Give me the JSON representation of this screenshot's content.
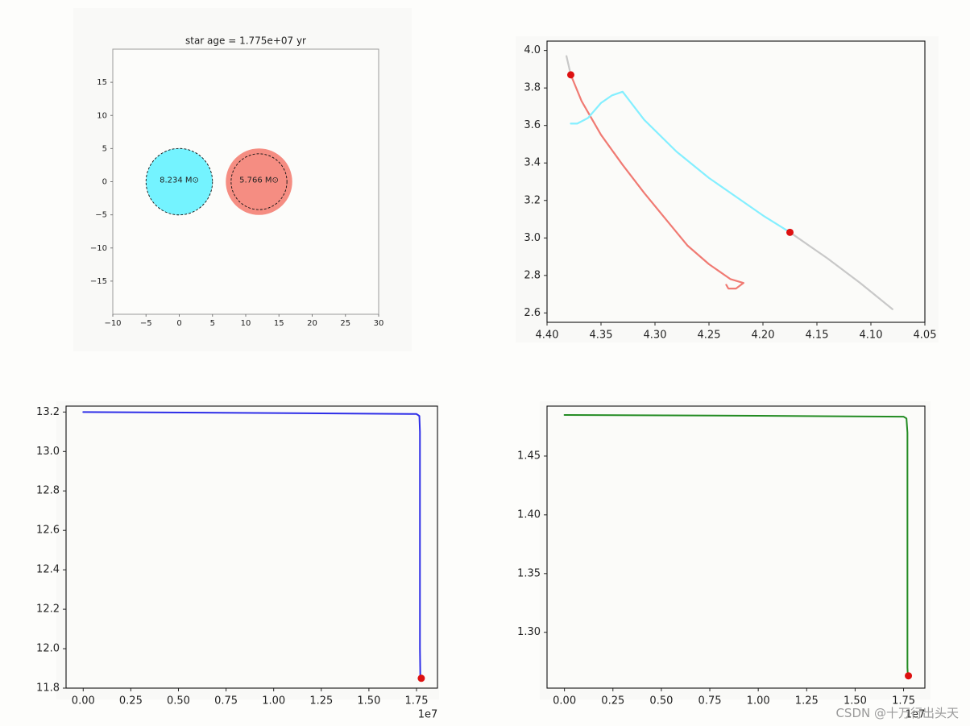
{
  "watermark": "CSDN @十万行出头天",
  "chart_data": [
    {
      "type": "scatter",
      "subtype": "binary-star-diagram",
      "title": "star age = 1.775e+07 yr",
      "xlabel": "",
      "ylabel": "",
      "xlim": [
        -10,
        30
      ],
      "ylim": [
        -20,
        20
      ],
      "x_ticks": [
        -10,
        -5,
        0,
        5,
        10,
        15,
        20,
        25,
        30
      ],
      "y_ticks": [
        -15,
        -10,
        -5,
        0,
        5,
        10,
        15
      ],
      "stars": [
        {
          "label": "8.234 $M_{\\odot}$",
          "x": 0,
          "y": 0,
          "radius": 5,
          "roche_radius": 5,
          "color": "#74f3ff"
        },
        {
          "label": "5.766 $M_{\\odot}$",
          "x": 12,
          "y": 0,
          "radius": 5,
          "roche_radius": 4.2,
          "color": "#f58d82"
        }
      ]
    },
    {
      "type": "line",
      "title": "",
      "xlabel": "",
      "ylabel": "",
      "x_inverted": true,
      "xlim": [
        4.4,
        4.05
      ],
      "ylim": [
        2.55,
        4.05
      ],
      "x_ticks": [
        4.4,
        4.35,
        4.3,
        4.25,
        4.2,
        4.15,
        4.1,
        4.05
      ],
      "y_ticks": [
        2.6,
        2.8,
        3.0,
        3.2,
        3.4,
        3.6,
        3.8,
        4.0
      ],
      "series": [
        {
          "color": "#c8c8c8",
          "points": [
            [
              4.382,
              3.97
            ],
            [
              4.378,
              3.87
            ]
          ]
        },
        {
          "color": "#c8c8c8",
          "points": [
            [
              4.175,
              3.03
            ],
            [
              4.14,
              2.89
            ],
            [
              4.11,
              2.76
            ],
            [
              4.08,
              2.62
            ]
          ]
        },
        {
          "color": "#f07a73",
          "points": [
            [
              4.378,
              3.87
            ],
            [
              4.368,
              3.73
            ],
            [
              4.35,
              3.55
            ],
            [
              4.33,
              3.39
            ],
            [
              4.31,
              3.24
            ],
            [
              4.29,
              3.1
            ],
            [
              4.27,
              2.96
            ],
            [
              4.25,
              2.86
            ],
            [
              4.23,
              2.78
            ],
            [
              4.218,
              2.76
            ],
            [
              4.225,
              2.73
            ],
            [
              4.232,
              2.73
            ],
            [
              4.234,
              2.75
            ]
          ]
        },
        {
          "color": "#84efff",
          "points": [
            [
              4.378,
              3.61
            ],
            [
              4.372,
              3.61
            ],
            [
              4.362,
              3.64
            ],
            [
              4.35,
              3.72
            ],
            [
              4.34,
              3.76
            ],
            [
              4.33,
              3.78
            ],
            [
              4.31,
              3.63
            ],
            [
              4.28,
              3.46
            ],
            [
              4.25,
              3.32
            ],
            [
              4.22,
              3.2
            ],
            [
              4.2,
              3.12
            ],
            [
              4.175,
              3.03
            ]
          ]
        }
      ],
      "markers": [
        {
          "x": 4.378,
          "y": 3.87,
          "color": "#dd1111"
        },
        {
          "x": 4.175,
          "y": 3.03,
          "color": "#dd1111"
        }
      ]
    },
    {
      "type": "line",
      "title": "",
      "xlabel": "",
      "ylabel": "",
      "offset_label": "1e7",
      "xlim": [
        -0.09,
        1.86
      ],
      "ylim": [
        11.8,
        13.23
      ],
      "x_ticks": [
        0.0,
        0.25,
        0.5,
        0.75,
        1.0,
        1.25,
        1.5,
        1.75
      ],
      "y_ticks": [
        11.8,
        12.0,
        12.2,
        12.4,
        12.6,
        12.8,
        13.0,
        13.2
      ],
      "series": [
        {
          "color": "#2e2ee8",
          "points": [
            [
              0.0,
              13.2
            ],
            [
              1.0,
              13.195
            ],
            [
              1.75,
              13.19
            ],
            [
              1.765,
              13.18
            ],
            [
              1.768,
              13.1
            ],
            [
              1.768,
              12.0
            ],
            [
              1.77,
              11.85
            ]
          ]
        }
      ],
      "markers": [
        {
          "x": 1.775,
          "y": 11.85,
          "color": "#dd1111"
        }
      ]
    },
    {
      "type": "line",
      "title": "",
      "xlabel": "",
      "ylabel": "",
      "offset_label": "1e7",
      "xlim": [
        -0.09,
        1.86
      ],
      "ylim": [
        1.2525,
        1.4925
      ],
      "x_ticks": [
        0.0,
        0.25,
        0.5,
        0.75,
        1.0,
        1.25,
        1.5,
        1.75
      ],
      "y_ticks": [
        1.3,
        1.35,
        1.4,
        1.45
      ],
      "series": [
        {
          "color": "#228b22",
          "points": [
            [
              0.0,
              1.485
            ],
            [
              1.0,
              1.4843
            ],
            [
              1.75,
              1.4835
            ],
            [
              1.765,
              1.482
            ],
            [
              1.77,
              1.47
            ],
            [
              1.77,
              1.27
            ],
            [
              1.772,
              1.263
            ]
          ]
        }
      ],
      "markers": [
        {
          "x": 1.775,
          "y": 1.263,
          "color": "#dd1111"
        }
      ]
    }
  ]
}
